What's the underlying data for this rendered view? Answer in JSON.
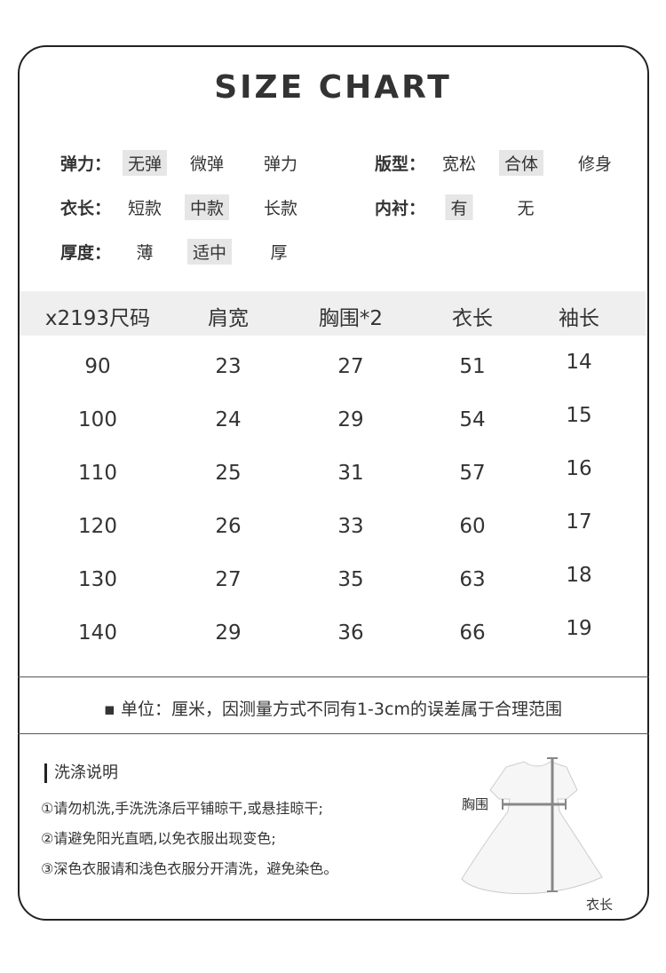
{
  "title": "SIZE CHART",
  "attributes": [
    {
      "label": "弹力：",
      "options": [
        "无弹",
        "微弹",
        "弹力"
      ],
      "selected": 0
    },
    {
      "label": "衣长：",
      "options": [
        "短款",
        "中款",
        "长款"
      ],
      "selected": 1
    },
    {
      "label": "厚度：",
      "options": [
        "薄",
        "适中",
        "厚"
      ],
      "selected": 1
    },
    {
      "label": "版型：",
      "options": [
        "宽松",
        "合体",
        "修身"
      ],
      "selected": 1
    },
    {
      "label": "内衬：",
      "options": [
        "有",
        "无"
      ],
      "selected": 0
    }
  ],
  "table": {
    "headers": [
      "x2193尺码",
      "肩宽",
      "胸围*2",
      "衣长",
      "袖长"
    ],
    "rows": [
      [
        "90",
        "23",
        "27",
        "51",
        "14"
      ],
      [
        "100",
        "24",
        "29",
        "54",
        "15"
      ],
      [
        "110",
        "25",
        "31",
        "57",
        "16"
      ],
      [
        "120",
        "26",
        "33",
        "60",
        "17"
      ],
      [
        "130",
        "27",
        "35",
        "63",
        "18"
      ],
      [
        "140",
        "29",
        "36",
        "66",
        "19"
      ]
    ]
  },
  "note": "▪ 单位：厘米，因测量方式不同有1-3cm的误差属于合理范围",
  "washing": {
    "title": "洗涤说明",
    "items": [
      "①请勿机洗,手洗洗涤后平铺晾干,或悬挂晾干;",
      "②请避免阳光直晒,以免衣服出现变色;",
      "③深色衣服请和浅色衣服分开清洗，避免染色。"
    ]
  },
  "diagram": {
    "chest_label": "胸围",
    "length_label": "衣长"
  }
}
